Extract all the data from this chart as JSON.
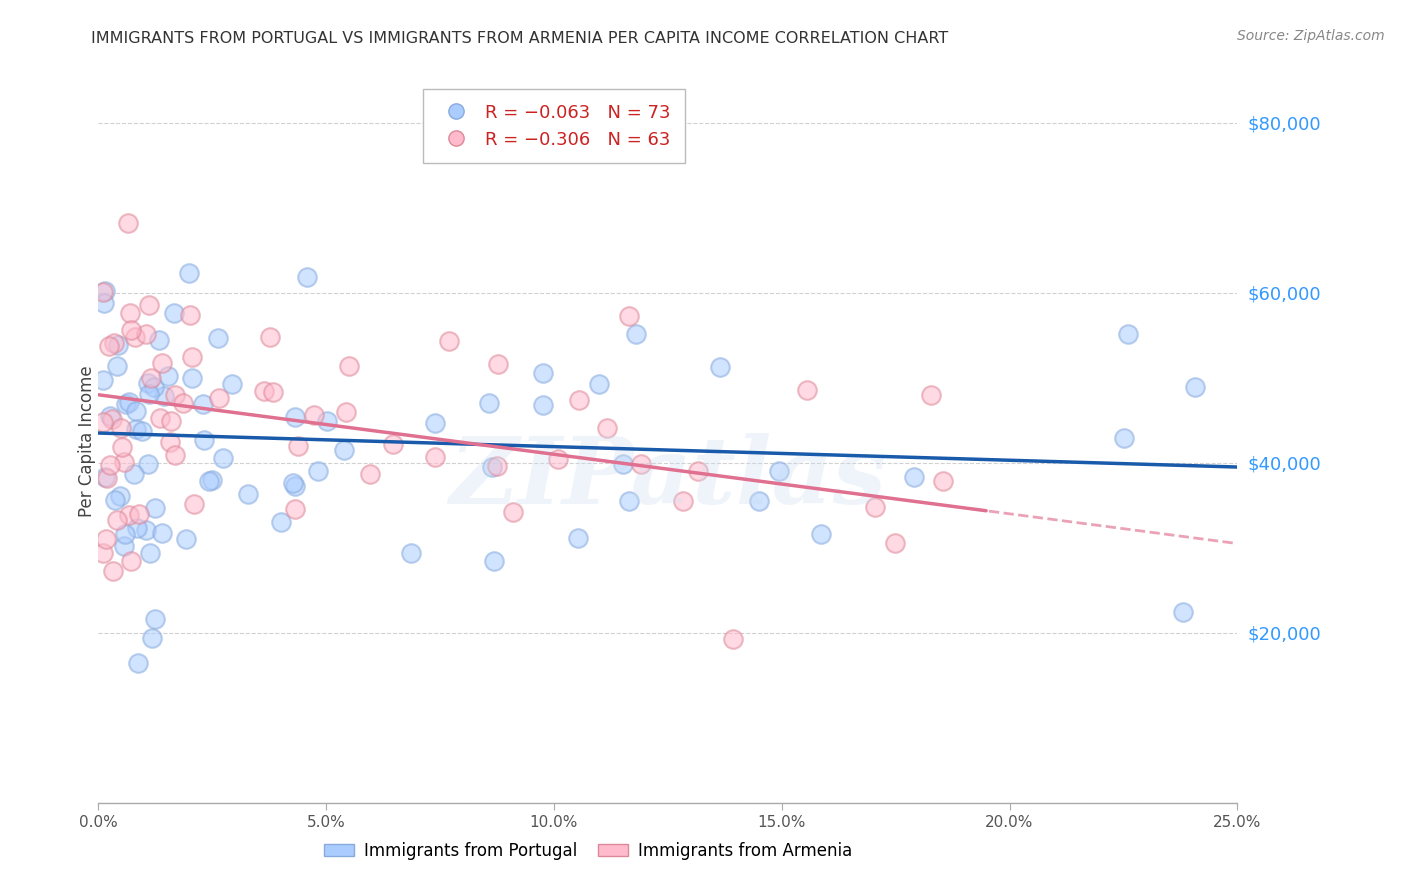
{
  "title": "IMMIGRANTS FROM PORTUGAL VS IMMIGRANTS FROM ARMENIA PER CAPITA INCOME CORRELATION CHART",
  "source": "Source: ZipAtlas.com",
  "ylabel": "Per Capita Income",
  "yticks": [
    0,
    20000,
    40000,
    60000,
    80000
  ],
  "ytick_labels": [
    "",
    "$20,000",
    "$40,000",
    "$60,000",
    "$80,000"
  ],
  "xlim": [
    0.0,
    0.25
  ],
  "ylim": [
    0,
    85000
  ],
  "watermark": "ZIPatlas",
  "portugal_R": -0.063,
  "portugal_N": 73,
  "armenia_R": -0.306,
  "armenia_N": 63,
  "portugal_line_color": "#1a5aaa",
  "armenia_line_color": "#e07090",
  "portugal_scatter_facecolor": "#aaccff",
  "portugal_scatter_edgecolor": "#88aadd",
  "armenia_scatter_facecolor": "#ffbbcc",
  "armenia_scatter_edgecolor": "#dd8899",
  "grid_color": "#cccccc",
  "title_color": "#333333",
  "source_color": "#888888",
  "ytick_color": "#3399ff",
  "xtick_color": "#555555",
  "portugal_line_intercept": 43500,
  "portugal_line_slope": -16000,
  "armenia_line_intercept": 48000,
  "armenia_line_slope": -70000
}
